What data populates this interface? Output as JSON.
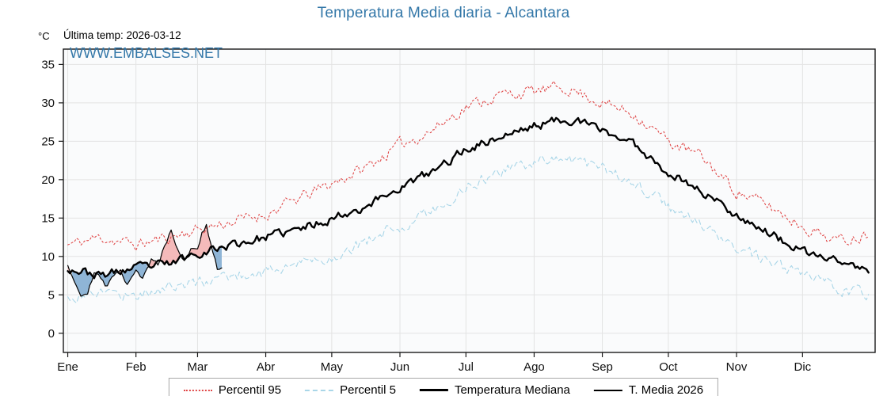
{
  "title": "Temperatura Media diaria - Alcantara",
  "unit": "°C",
  "last_temp": "Última temp: 2026-03-12",
  "watermark": "WWW.EMBALSES.NET",
  "colors": {
    "title": "#3377a8",
    "watermark": "#3377a8",
    "grid": "#e3e3e3",
    "plot_bg": "#fafbfc",
    "axis": "#1a1a1a",
    "fill_above": "#f3b4b4",
    "fill_below": "#85afd2"
  },
  "chart_data": {
    "type": "line",
    "title": "Temperatura Media diaria - Alcantara",
    "x_months": [
      "Ene",
      "Feb",
      "Mar",
      "Abr",
      "May",
      "Jun",
      "Jul",
      "Ago",
      "Sep",
      "Oct",
      "Nov",
      "Dic"
    ],
    "month_start_days": [
      0,
      31,
      59,
      90,
      120,
      151,
      181,
      212,
      243,
      273,
      304,
      334
    ],
    "days_in_year": 365,
    "ylim": [
      -2.5,
      37
    ],
    "yticks": [
      0,
      5,
      10,
      15,
      20,
      25,
      30,
      35
    ],
    "legend_position": "bottom",
    "series": [
      {
        "id": "p95",
        "name": "Percentil 95",
        "color": "#e04848",
        "dash": "2 3",
        "width": 1.1,
        "noise": 0.7,
        "seed": 11,
        "anchor_days": [
          0,
          15,
          31,
          46,
          59,
          74,
          90,
          105,
          120,
          135,
          151,
          166,
          181,
          196,
          212,
          227,
          243,
          258,
          273,
          288,
          304,
          319,
          334,
          350,
          364
        ],
        "anchor_values": [
          11.5,
          12.5,
          11.5,
          12.5,
          13.5,
          14.5,
          15.5,
          17.5,
          19.5,
          21.5,
          24.5,
          26.5,
          29.5,
          31,
          31.5,
          32,
          30,
          28.5,
          25,
          23,
          18.5,
          16.5,
          14,
          12,
          13
        ]
      },
      {
        "id": "p5",
        "name": "Percentil 5",
        "color": "#a9d6e8",
        "dash": "6 4",
        "width": 1.1,
        "noise": 0.7,
        "seed": 17,
        "anchor_days": [
          0,
          15,
          31,
          46,
          59,
          74,
          90,
          105,
          120,
          135,
          151,
          166,
          181,
          196,
          212,
          227,
          243,
          258,
          273,
          288,
          304,
          319,
          334,
          350,
          364
        ],
        "anchor_values": [
          4.5,
          5.5,
          5,
          6,
          6.5,
          7.5,
          8,
          9,
          10,
          12,
          14,
          16,
          19,
          21,
          22.5,
          23,
          21.5,
          19.5,
          16.5,
          14,
          11,
          9,
          7.5,
          6,
          5
        ]
      },
      {
        "id": "t2026",
        "name": "T. Media 2026",
        "color": "#000000",
        "width": 1.2,
        "noise": 0.3,
        "seed": 29,
        "points": [
          [
            0,
            9
          ],
          [
            3,
            7
          ],
          [
            6,
            5
          ],
          [
            9,
            5.5
          ],
          [
            12,
            8
          ],
          [
            15,
            7
          ],
          [
            18,
            6
          ],
          [
            21,
            7.5
          ],
          [
            24,
            8.5
          ],
          [
            27,
            6.5
          ],
          [
            31,
            8.5
          ],
          [
            34,
            7
          ],
          [
            38,
            9.5
          ],
          [
            41,
            9
          ],
          [
            44,
            11.5
          ],
          [
            47,
            13.5
          ],
          [
            50,
            11
          ],
          [
            53,
            9.5
          ],
          [
            56,
            11
          ],
          [
            59,
            11
          ],
          [
            61,
            13
          ],
          [
            63,
            14
          ],
          [
            65,
            11.5
          ],
          [
            67,
            9.5
          ],
          [
            68,
            8
          ],
          [
            70,
            8.5
          ]
        ]
      },
      {
        "id": "median",
        "name": "Temperatura Mediana",
        "color": "#000000",
        "width": 2.4,
        "noise": 0.5,
        "seed": 23,
        "anchor_days": [
          0,
          15,
          31,
          46,
          59,
          74,
          90,
          105,
          120,
          135,
          151,
          166,
          181,
          196,
          212,
          227,
          243,
          258,
          273,
          288,
          304,
          319,
          334,
          350,
          364
        ],
        "anchor_values": [
          8.5,
          7.5,
          8.5,
          9,
          10.5,
          11.5,
          12.5,
          13.5,
          15,
          16.5,
          19,
          21,
          24,
          25.5,
          27,
          28,
          26.5,
          24.5,
          21,
          18.5,
          15.5,
          13,
          10.5,
          9.5,
          8
        ]
      }
    ],
    "legend_items": [
      {
        "label": "Percentil 95",
        "series_id": "p95"
      },
      {
        "label": "Percentil 5",
        "series_id": "p5"
      },
      {
        "label": "Temperatura Mediana",
        "series_id": "median"
      },
      {
        "label": "T. Media 2026",
        "series_id": "t2026"
      }
    ]
  }
}
